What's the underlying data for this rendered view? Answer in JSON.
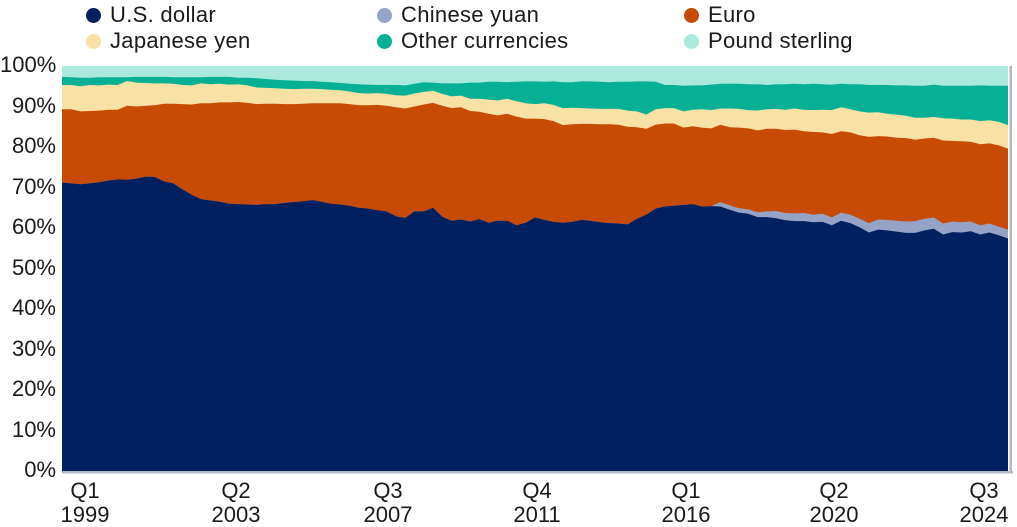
{
  "legend": {
    "items": [
      {
        "key": "usd",
        "label": "U.S. dollar",
        "color": "#002060"
      },
      {
        "key": "cny",
        "label": "Chinese yuan",
        "color": "#95a4c6"
      },
      {
        "key": "eur",
        "label": "Euro",
        "color": "#c84b03"
      },
      {
        "key": "jpy",
        "label": "Japanese yen",
        "color": "#f8e1a4"
      },
      {
        "key": "other",
        "label": "Other currencies",
        "color": "#06b095"
      },
      {
        "key": "gbp",
        "label": "Pound sterling",
        "color": "#abe9dc"
      }
    ]
  },
  "chart_data": {
    "type": "area",
    "stacked": true,
    "unit": "% of allocated foreign-exchange reserves",
    "x_axis": {
      "frequency": "quarterly",
      "start": "Q1 1999",
      "end": "Q3 2024",
      "tick_labels": [
        {
          "line1": "Q1",
          "line2": "1999"
        },
        {
          "line1": "Q2",
          "line2": "2003"
        },
        {
          "line1": "Q3",
          "line2": "2007"
        },
        {
          "line1": "Q4",
          "line2": "2011"
        },
        {
          "line1": "Q1",
          "line2": "2016"
        },
        {
          "line1": "Q2",
          "line2": "2020"
        },
        {
          "line1": "Q3",
          "line2": "2024"
        }
      ]
    },
    "y_axis": {
      "range": [
        0,
        100
      ],
      "tick_labels": [
        "0%",
        "10%",
        "20%",
        "30%",
        "40%",
        "50%",
        "60%",
        "70%",
        "80%",
        "90%",
        "100%"
      ]
    },
    "stack_order": [
      "usd",
      "cny",
      "eur",
      "jpy",
      "other",
      "gbp"
    ],
    "series": [
      {
        "key": "usd",
        "label": "U.S. dollar",
        "color": "#002060",
        "values": [
          71.2,
          71.0,
          70.8,
          71.0,
          71.3,
          71.7,
          72.0,
          71.9,
          72.2,
          72.7,
          72.6,
          71.5,
          71.0,
          69.5,
          68.2,
          67.1,
          66.8,
          66.5,
          66.0,
          65.9,
          65.8,
          65.7,
          65.9,
          65.9,
          66.2,
          66.4,
          66.6,
          66.9,
          66.5,
          66.0,
          65.8,
          65.5,
          65.0,
          64.8,
          64.4,
          64.1,
          62.9,
          62.5,
          64.1,
          64.1,
          65.0,
          62.8,
          61.8,
          62.1,
          61.6,
          62.2,
          61.3,
          61.8,
          61.8,
          60.7,
          61.3,
          62.6,
          62.0,
          61.5,
          61.3,
          61.5,
          62.0,
          61.8,
          61.4,
          61.2,
          61.1,
          60.9,
          62.3,
          63.3,
          64.8,
          65.3,
          65.5,
          65.7,
          65.9,
          65.3,
          65.4,
          65.3,
          64.5,
          63.8,
          63.5,
          62.7,
          62.7,
          62.4,
          61.9,
          61.7,
          61.7,
          61.4,
          61.5,
          60.7,
          61.8,
          61.2,
          60.2,
          58.9,
          59.6,
          59.4,
          59.1,
          58.8,
          58.8,
          59.4,
          59.8,
          58.4,
          59.0,
          58.9,
          59.2,
          58.4,
          58.9,
          58.2,
          57.4
        ]
      },
      {
        "key": "cny",
        "label": "Chinese yuan",
        "color": "#95a4c6",
        "values": [
          0,
          0,
          0,
          0,
          0,
          0,
          0,
          0,
          0,
          0,
          0,
          0,
          0,
          0,
          0,
          0,
          0,
          0,
          0,
          0,
          0,
          0,
          0,
          0,
          0,
          0,
          0,
          0,
          0,
          0,
          0,
          0,
          0,
          0,
          0,
          0,
          0,
          0,
          0,
          0,
          0,
          0,
          0,
          0,
          0,
          0,
          0,
          0,
          0,
          0,
          0,
          0,
          0,
          0,
          0,
          0,
          0,
          0,
          0,
          0,
          0,
          0,
          0,
          0,
          0,
          0,
          0,
          0,
          0,
          0,
          0,
          1.1,
          1.1,
          1.1,
          1.1,
          1.2,
          1.4,
          1.8,
          1.8,
          1.9,
          2.0,
          1.9,
          2.0,
          1.9,
          2.0,
          2.1,
          2.1,
          2.3,
          2.5,
          2.6,
          2.7,
          2.8,
          2.9,
          2.9,
          2.8,
          2.7,
          2.6,
          2.5,
          2.4,
          2.3,
          2.2,
          2.1,
          2.2
        ]
      },
      {
        "key": "eur",
        "label": "Euro",
        "color": "#c84b03",
        "values": [
          18.1,
          18.3,
          18.0,
          17.9,
          17.7,
          17.5,
          17.2,
          18.3,
          17.8,
          17.5,
          17.7,
          19.2,
          19.7,
          21.1,
          22.3,
          23.7,
          24.0,
          24.5,
          25.0,
          25.2,
          25.1,
          24.9,
          24.8,
          24.8,
          24.4,
          24.2,
          24.1,
          23.9,
          24.3,
          24.8,
          25.0,
          25.1,
          25.3,
          25.5,
          26.0,
          26.1,
          26.9,
          27.0,
          25.9,
          26.4,
          25.9,
          27.4,
          27.8,
          27.7,
          27.3,
          26.5,
          26.9,
          26.0,
          26.4,
          26.8,
          25.7,
          24.4,
          24.9,
          24.9,
          24.1,
          24.1,
          23.7,
          23.9,
          24.2,
          24.4,
          24.4,
          24.1,
          22.6,
          21.2,
          20.7,
          20.5,
          20.3,
          19.1,
          19.2,
          19.5,
          19.2,
          19.1,
          19.3,
          19.9,
          20.0,
          20.2,
          20.4,
          20.3,
          20.5,
          20.7,
          20.2,
          20.4,
          20.1,
          20.6,
          20.1,
          20.3,
          20.6,
          21.3,
          20.6,
          20.6,
          20.5,
          20.6,
          20.1,
          19.8,
          19.7,
          20.5,
          19.9,
          20.0,
          19.7,
          20.0,
          19.8,
          20.1,
          20.0
        ]
      },
      {
        "key": "jpy",
        "label": "Japanese yen",
        "color": "#f8e1a4",
        "values": [
          6.0,
          6.0,
          6.2,
          6.4,
          6.2,
          6.2,
          6.1,
          6.1,
          5.9,
          5.6,
          5.4,
          5.0,
          4.9,
          4.7,
          4.7,
          4.9,
          4.7,
          4.6,
          4.4,
          4.4,
          4.3,
          4.1,
          3.9,
          3.8,
          3.8,
          3.7,
          3.7,
          3.6,
          3.5,
          3.3,
          3.2,
          3.1,
          3.0,
          2.9,
          2.9,
          2.9,
          3.0,
          3.2,
          3.2,
          3.1,
          3.0,
          2.9,
          2.9,
          2.9,
          3.0,
          3.2,
          3.5,
          3.7,
          3.7,
          3.8,
          3.8,
          3.6,
          3.9,
          4.0,
          4.2,
          4.1,
          3.9,
          3.8,
          3.8,
          3.8,
          3.9,
          4.0,
          3.9,
          3.5,
          3.8,
          3.8,
          3.8,
          4.0,
          4.1,
          4.5,
          4.5,
          4.0,
          4.6,
          4.6,
          4.5,
          4.9,
          4.8,
          4.9,
          5.0,
          5.2,
          5.3,
          5.4,
          5.6,
          5.9,
          5.9,
          5.7,
          5.9,
          6.0,
          5.9,
          5.6,
          5.7,
          5.5,
          5.4,
          5.1,
          5.1,
          5.5,
          5.5,
          5.4,
          5.5,
          5.7,
          5.7,
          5.8,
          5.8
        ]
      },
      {
        "key": "other",
        "label": "Other currencies",
        "color": "#06b095",
        "remainder": true,
        "values": null
      },
      {
        "key": "gbp",
        "label": "Pound sterling",
        "color": "#abe9dc",
        "values": [
          2.7,
          2.8,
          2.9,
          2.9,
          2.8,
          2.8,
          2.8,
          2.8,
          2.7,
          2.7,
          2.7,
          2.7,
          2.8,
          2.8,
          2.8,
          2.8,
          2.7,
          2.7,
          2.7,
          2.9,
          2.9,
          3.0,
          3.2,
          3.4,
          3.5,
          3.6,
          3.7,
          3.7,
          3.9,
          4.0,
          4.2,
          4.4,
          4.5,
          4.6,
          4.7,
          4.7,
          4.7,
          4.8,
          4.4,
          4.0,
          4.1,
          4.3,
          4.3,
          4.3,
          4.1,
          4.1,
          3.9,
          3.9,
          4.0,
          3.9,
          3.8,
          3.8,
          3.9,
          3.8,
          4.0,
          4.0,
          3.8,
          3.8,
          3.9,
          4.0,
          3.9,
          3.9,
          3.8,
          3.8,
          3.9,
          4.7,
          4.7,
          4.9,
          4.8,
          4.8,
          4.6,
          4.4,
          4.4,
          4.4,
          4.5,
          4.5,
          4.7,
          4.5,
          4.5,
          4.4,
          4.5,
          4.4,
          4.5,
          4.6,
          4.4,
          4.5,
          4.5,
          4.7,
          4.7,
          4.7,
          4.8,
          4.8,
          4.9,
          4.9,
          4.6,
          4.9,
          4.9,
          4.9,
          4.9,
          4.8,
          4.9,
          4.9,
          4.9
        ]
      }
    ],
    "frame": {
      "bottom_border_color": "#b3b9c4",
      "right_border_color": "#b3b9c4"
    }
  }
}
